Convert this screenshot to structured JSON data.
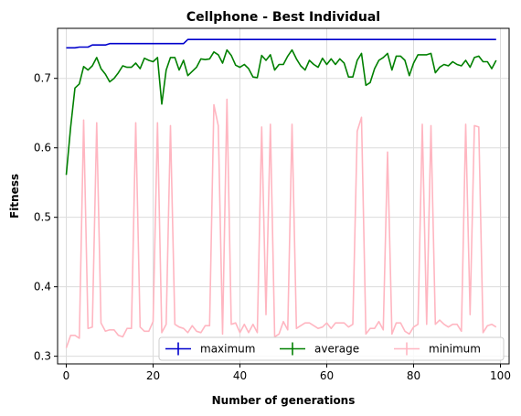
{
  "chart_data": {
    "type": "line",
    "title": "Cellphone - Best Individual",
    "xlabel": "Number of generations",
    "ylabel": "Fitness",
    "xlim": [
      -2,
      102
    ],
    "ylim": [
      0.289,
      0.772
    ],
    "xticks": [
      0,
      20,
      40,
      60,
      80,
      100
    ],
    "yticks": [
      0.3,
      0.4,
      0.5,
      0.6,
      0.7
    ],
    "grid": true,
    "legend_position": "lower-right",
    "x": [
      0,
      1,
      2,
      3,
      4,
      5,
      6,
      7,
      8,
      9,
      10,
      11,
      12,
      13,
      14,
      15,
      16,
      17,
      18,
      19,
      20,
      21,
      22,
      23,
      24,
      25,
      26,
      27,
      28,
      29,
      30,
      31,
      32,
      33,
      34,
      35,
      36,
      37,
      38,
      39,
      40,
      41,
      42,
      43,
      44,
      45,
      46,
      47,
      48,
      49,
      50,
      51,
      52,
      53,
      54,
      55,
      56,
      57,
      58,
      59,
      60,
      61,
      62,
      63,
      64,
      65,
      66,
      67,
      68,
      69,
      70,
      71,
      72,
      73,
      74,
      75,
      76,
      77,
      78,
      79,
      80,
      81,
      82,
      83,
      84,
      85,
      86,
      87,
      88,
      89,
      90,
      91,
      92,
      93,
      94,
      95,
      96,
      97,
      98,
      99
    ],
    "series": [
      {
        "name": "maximum",
        "color": "#0000cc",
        "values": [
          0.744,
          0.744,
          0.744,
          0.745,
          0.745,
          0.745,
          0.748,
          0.748,
          0.748,
          0.748,
          0.75,
          0.75,
          0.75,
          0.75,
          0.75,
          0.75,
          0.75,
          0.75,
          0.75,
          0.75,
          0.75,
          0.75,
          0.75,
          0.75,
          0.75,
          0.75,
          0.75,
          0.75,
          0.756,
          0.756,
          0.756,
          0.756,
          0.756,
          0.756,
          0.756,
          0.756,
          0.756,
          0.756,
          0.756,
          0.756,
          0.756,
          0.756,
          0.756,
          0.756,
          0.756,
          0.756,
          0.756,
          0.756,
          0.756,
          0.756,
          0.756,
          0.756,
          0.756,
          0.756,
          0.756,
          0.756,
          0.756,
          0.756,
          0.756,
          0.756,
          0.756,
          0.756,
          0.756,
          0.756,
          0.756,
          0.756,
          0.756,
          0.756,
          0.756,
          0.756,
          0.756,
          0.756,
          0.756,
          0.756,
          0.756,
          0.756,
          0.756,
          0.756,
          0.756,
          0.756,
          0.756,
          0.756,
          0.756,
          0.756,
          0.756,
          0.756,
          0.756,
          0.756,
          0.756,
          0.756,
          0.756,
          0.756,
          0.756,
          0.756,
          0.756,
          0.756,
          0.756,
          0.756,
          0.756,
          0.756
        ]
      },
      {
        "name": "average",
        "color": "#008000",
        "values": [
          0.561,
          0.63,
          0.686,
          0.692,
          0.717,
          0.712,
          0.718,
          0.73,
          0.714,
          0.706,
          0.695,
          0.7,
          0.708,
          0.718,
          0.716,
          0.716,
          0.722,
          0.714,
          0.729,
          0.726,
          0.724,
          0.73,
          0.663,
          0.712,
          0.73,
          0.73,
          0.712,
          0.726,
          0.704,
          0.71,
          0.716,
          0.728,
          0.727,
          0.728,
          0.738,
          0.734,
          0.722,
          0.741,
          0.733,
          0.719,
          0.716,
          0.72,
          0.714,
          0.702,
          0.701,
          0.733,
          0.726,
          0.734,
          0.712,
          0.72,
          0.72,
          0.732,
          0.741,
          0.728,
          0.718,
          0.712,
          0.726,
          0.72,
          0.716,
          0.729,
          0.72,
          0.728,
          0.72,
          0.728,
          0.722,
          0.702,
          0.702,
          0.726,
          0.736,
          0.69,
          0.694,
          0.714,
          0.726,
          0.73,
          0.736,
          0.712,
          0.732,
          0.732,
          0.726,
          0.704,
          0.722,
          0.734,
          0.734,
          0.734,
          0.736,
          0.708,
          0.716,
          0.72,
          0.718,
          0.724,
          0.72,
          0.718,
          0.726,
          0.716,
          0.73,
          0.732,
          0.724,
          0.724,
          0.714,
          0.726
        ]
      },
      {
        "name": "minimum",
        "color": "#ffb6c1",
        "values": [
          0.312,
          0.33,
          0.33,
          0.326,
          0.64,
          0.34,
          0.342,
          0.636,
          0.348,
          0.336,
          0.338,
          0.338,
          0.33,
          0.328,
          0.34,
          0.34,
          0.636,
          0.342,
          0.336,
          0.336,
          0.35,
          0.636,
          0.334,
          0.346,
          0.632,
          0.346,
          0.342,
          0.34,
          0.334,
          0.344,
          0.336,
          0.334,
          0.344,
          0.344,
          0.662,
          0.632,
          0.332,
          0.67,
          0.346,
          0.348,
          0.334,
          0.346,
          0.334,
          0.346,
          0.334,
          0.63,
          0.36,
          0.634,
          0.328,
          0.332,
          0.35,
          0.338,
          0.634,
          0.34,
          0.344,
          0.348,
          0.348,
          0.344,
          0.34,
          0.342,
          0.348,
          0.34,
          0.348,
          0.348,
          0.348,
          0.342,
          0.346,
          0.624,
          0.644,
          0.332,
          0.34,
          0.34,
          0.35,
          0.338,
          0.594,
          0.332,
          0.348,
          0.348,
          0.336,
          0.332,
          0.342,
          0.346,
          0.634,
          0.346,
          0.632,
          0.346,
          0.352,
          0.346,
          0.342,
          0.346,
          0.346,
          0.336,
          0.634,
          0.36,
          0.632,
          0.63,
          0.334,
          0.344,
          0.346,
          0.342
        ]
      }
    ]
  }
}
